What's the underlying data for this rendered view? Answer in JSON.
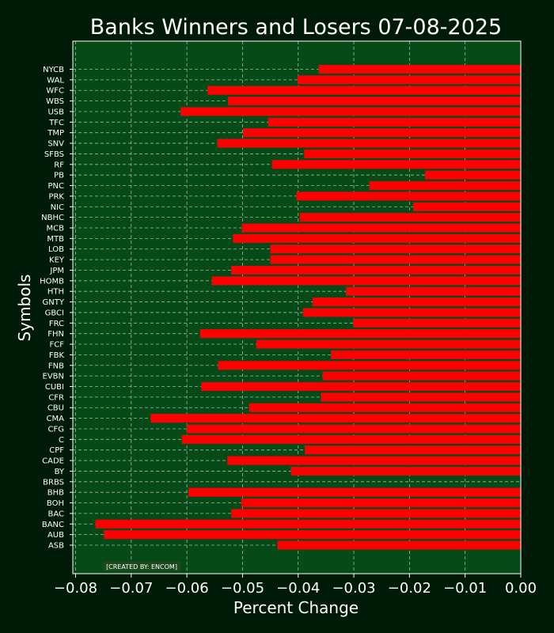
{
  "chart_data": {
    "type": "bar",
    "orientation": "horizontal",
    "title": "Banks Winners and Losers 07-08-2025",
    "xlabel": "Percent Change",
    "ylabel": "Symbols",
    "xlim": [
      -0.0805,
      0.0
    ],
    "xticks": [
      -0.08,
      -0.07,
      -0.06,
      -0.05,
      -0.04,
      -0.03,
      -0.02,
      -0.01,
      0.0
    ],
    "xtick_labels": [
      "−0.08",
      "−0.07",
      "−0.06",
      "−0.05",
      "−0.04",
      "−0.03",
      "−0.02",
      "−0.01",
      "0.00"
    ],
    "grid": true,
    "credit": "[CREATED BY: ENCOM]",
    "colors": {
      "figure_background": "#001a08",
      "plot_background": "#064a18",
      "bar": "#ff0000",
      "bar_edge": "#cc1010",
      "grid": "#a0b8a0",
      "text": "#ffffff"
    },
    "categories": [
      "NYCB",
      "WAL",
      "WFC",
      "WBS",
      "USB",
      "TFC",
      "TMP",
      "SNV",
      "SFBS",
      "RF",
      "PB",
      "PNC",
      "PRK",
      "NIC",
      "NBHC",
      "MCB",
      "MTB",
      "LOB",
      "KEY",
      "JPM",
      "HOMB",
      "HTH",
      "GNTY",
      "GBCI",
      "FRC",
      "FHN",
      "FCF",
      "FBK",
      "FNB",
      "EVBN",
      "CUBI",
      "CFR",
      "CBU",
      "CMA",
      "CFG",
      "C",
      "CPF",
      "CADE",
      "BY",
      "BRBS",
      "BHB",
      "BOH",
      "BAC",
      "BANC",
      "AUB",
      "ASB"
    ],
    "values": [
      -0.0363,
      -0.0401,
      -0.0563,
      -0.0526,
      -0.0611,
      -0.0454,
      -0.0499,
      -0.0545,
      -0.0389,
      -0.0447,
      -0.0172,
      -0.0272,
      -0.0403,
      -0.0193,
      -0.0397,
      -0.0501,
      -0.0517,
      -0.045,
      -0.045,
      -0.052,
      -0.0555,
      -0.0314,
      -0.0374,
      -0.0391,
      -0.0301,
      -0.0576,
      -0.0475,
      -0.0341,
      -0.0544,
      -0.0356,
      -0.0574,
      -0.0359,
      -0.0488,
      -0.0665,
      -0.06,
      -0.0609,
      -0.0388,
      -0.0527,
      -0.0413,
      0.0,
      -0.0597,
      -0.0502,
      -0.052,
      -0.0764,
      -0.0749,
      -0.0437
    ]
  }
}
